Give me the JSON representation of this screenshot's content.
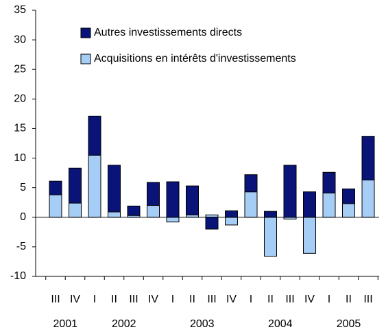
{
  "chart_data": {
    "type": "bar",
    "stacked": true,
    "categories": [
      "III",
      "IV",
      "I",
      "II",
      "III",
      "IV",
      "I",
      "II",
      "III",
      "IV",
      "I",
      "II",
      "III",
      "IV",
      "I",
      "II",
      "III"
    ],
    "years": [
      "2001",
      "2002",
      "2003",
      "2004",
      "2005"
    ],
    "series": [
      {
        "name": "Autres investissements directs",
        "color": "#0a1478",
        "values": [
          2.3,
          5.9,
          6.6,
          7.9,
          1.6,
          3.9,
          6.0,
          4.9,
          -2.0,
          1.1,
          2.9,
          1.0,
          8.8,
          4.3,
          3.5,
          2.5,
          7.4
        ]
      },
      {
        "name": "Acquisitions en intérêts d'investissements",
        "color": "#a6cdf5",
        "values": [
          3.8,
          2.4,
          10.5,
          0.9,
          0.3,
          2.0,
          -0.8,
          0.4,
          0.4,
          -1.3,
          4.3,
          -6.6,
          -0.3,
          -6.1,
          4.1,
          2.3,
          6.3
        ]
      }
    ],
    "ylim": [
      -10,
      35
    ],
    "yticks": [
      -10,
      -5,
      0,
      5,
      10,
      15,
      20,
      25,
      30,
      35
    ]
  }
}
